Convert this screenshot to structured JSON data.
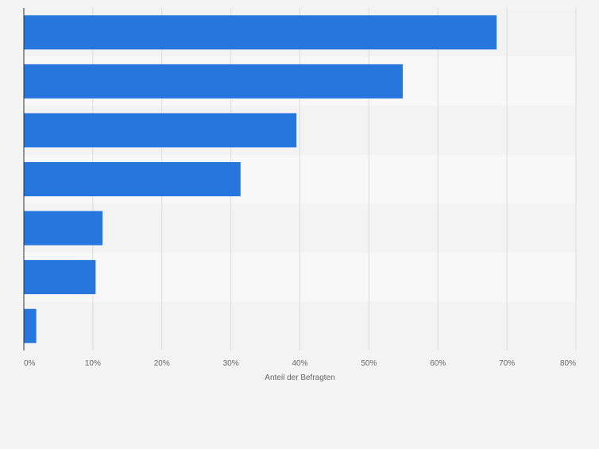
{
  "chart_data": {
    "type": "bar",
    "orientation": "horizontal",
    "title": "",
    "xlabel": "Anteil der Befragten",
    "ylabel": "",
    "xlim": [
      0,
      80
    ],
    "tick_values": [
      0,
      10,
      20,
      30,
      40,
      50,
      60,
      70,
      80
    ],
    "tick_labels": [
      "0%",
      "10%",
      "20%",
      "30%",
      "40%",
      "50%",
      "60%",
      "70%",
      "80%"
    ],
    "categories": [
      "",
      "",
      "",
      "",
      "",
      "",
      ""
    ],
    "values": [
      68.5,
      54.9,
      39.5,
      31.4,
      11.4,
      10.4,
      1.8
    ],
    "colors": {
      "bar": "#2776de",
      "band_dark": "#f3f3f3",
      "band_light": "#f8f8f8",
      "grid": "#dcdcdc",
      "axis": "#333333",
      "tick_text": "#666666",
      "page": "#f4f4f4"
    }
  }
}
